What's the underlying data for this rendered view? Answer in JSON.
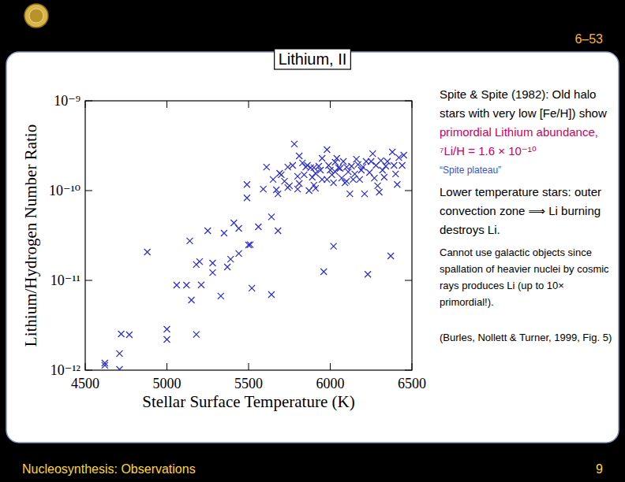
{
  "chart_data": {
    "type": "scatter",
    "title": "Lithium, II",
    "x_label": "Stellar Surface Temperature (K)",
    "y_label": "Lithium/Hydrogen Number Ratio",
    "color": "#2b2bcc",
    "marker": "x",
    "log": "y",
    "xlim": [
      4500,
      6500
    ],
    "ylim": [
      1e-12,
      1e-09
    ],
    "xticks": [
      4500,
      5000,
      5500,
      6000,
      6500
    ],
    "yticks": [
      {
        "value": 1e-12,
        "label": "10⁻¹²"
      },
      {
        "value": 1e-11,
        "label": "10⁻¹¹"
      },
      {
        "value": 1e-10,
        "label": "10⁻¹⁰"
      },
      {
        "value": 1e-09,
        "label": "10⁻⁹"
      }
    ],
    "x": [
      4620,
      4620,
      4710,
      4710,
      4720,
      4770,
      4880,
      5000,
      5000,
      5060,
      5120,
      5140,
      5150,
      5180,
      5180,
      5200,
      5210,
      5250,
      5280,
      5280,
      5330,
      5350,
      5370,
      5390,
      5410,
      5440,
      5440,
      5490,
      5490,
      5500,
      5510,
      5520,
      5560,
      5590,
      5610,
      5640,
      5640,
      5650,
      5670,
      5680,
      5680,
      5690,
      5700,
      5720,
      5740,
      5740,
      5750,
      5770,
      5780,
      5800,
      5800,
      5810,
      5810,
      5830,
      5840,
      5850,
      5860,
      5870,
      5880,
      5890,
      5900,
      5900,
      5910,
      5910,
      5930,
      5940,
      5950,
      5950,
      5960,
      5980,
      5980,
      5990,
      6000,
      6010,
      6020,
      6030,
      6030,
      6040,
      6050,
      6060,
      6070,
      6080,
      6090,
      6100,
      6100,
      6110,
      6120,
      6130,
      6140,
      6150,
      6160,
      6170,
      6180,
      6190,
      6200,
      6210,
      6220,
      6230,
      6240,
      6250,
      6260,
      6270,
      6280,
      6290,
      6300,
      6310,
      6320,
      6330,
      6340,
      6350,
      6370,
      6380,
      6390,
      6400,
      6410,
      6420,
      6440,
      6450,
      6020
    ],
    "values": [
      1.2e-12,
      1.13e-12,
      1.02e-12,
      1.53e-12,
      2.53e-12,
      2.48e-12,
      2.07e-11,
      2.86e-12,
      2.2e-12,
      8.86e-12,
      8.86e-12,
      2.75e-11,
      6.04e-12,
      2.5e-12,
      1.5e-11,
      1.62e-11,
      8.9e-12,
      3.57e-11,
      1.56e-11,
      1.22e-11,
      6.7e-12,
      3.36e-11,
      1.41e-11,
      1.72e-11,
      4.37e-11,
      3.79e-11,
      1.99e-11,
      1.17e-10,
      8.3e-11,
      2.48e-11,
      2.5e-11,
      8.2e-12,
      3.95e-11,
      1.04e-10,
      1.83e-10,
      5.1e-11,
      6.95e-12,
      1.33e-10,
      1.02e-10,
      3.57e-11,
      9.2e-11,
      1.56e-10,
      1.5e-10,
      1.27e-10,
      1.83e-10,
      1.08e-10,
      1.13e-10,
      1.91e-10,
      3.3e-10,
      1.44e-10,
      1.04e-10,
      1.2e-10,
      2.43e-10,
      2.03e-10,
      1.5e-10,
      1.83e-10,
      1.91e-10,
      1e-10,
      1.8e-10,
      1.41e-10,
      1.15e-10,
      1.8e-10,
      1.56e-10,
      1.06e-10,
      1.87e-10,
      1.69e-10,
      1.33e-10,
      2.29e-10,
      1.25e-11,
      2.86e-10,
      1.33e-10,
      1.91e-10,
      1.69e-10,
      1.5e-10,
      1.22e-10,
      2.07e-10,
      1.62e-10,
      2.29e-10,
      1.8e-10,
      1.77e-10,
      1.38e-10,
      2.11e-10,
      1.22e-10,
      1.83e-10,
      1.27e-10,
      1.62e-10,
      9.2e-11,
      1.87e-10,
      1.33e-10,
      1.53e-10,
      2.24e-10,
      1.95e-10,
      1.33e-10,
      1.69e-10,
      1.83e-10,
      9.2e-11,
      2.11e-10,
      1.17e-11,
      1.59e-10,
      2.11e-10,
      2.58e-10,
      1.38e-10,
      1.91e-10,
      1.13e-10,
      9.6e-11,
      2.16e-10,
      1.69e-10,
      1.41e-10,
      1.87e-10,
      2.11e-10,
      1.87e-11,
      2.69e-10,
      1.91e-10,
      1.53e-10,
      1.17e-10,
      2.33e-10,
      1.91e-10,
      2.48e-10,
      2.4e-11
    ]
  },
  "slide": {
    "number": "6–53",
    "footer": "Nucleosynthesis: Observations",
    "page": "9",
    "notes": [
      {
        "runs": [
          {
            "text": "Spite & Spite (1982): Old halo stars with very low [Fe/H]) show "
          },
          {
            "text": "primordial Lithium abundance,",
            "color": "#cc0066"
          },
          {
            "text": " ⁷Li/H = 1.6 × 10⁻¹⁰",
            "color": "#cc0066"
          }
        ]
      },
      {
        "runs": [
          {
            "text": "“Spite plateau”",
            "color": "#3355cc"
          }
        ]
      },
      {
        "runs": [
          {
            "text": "Lower temperature stars: outer convection zone ⟹ Li burning destroys Li."
          }
        ]
      },
      {
        "runs": [
          {
            "text": "Cannot use galactic objects since spallation of heavier nuclei by cosmic rays produces Li (up to 10× primordial!)."
          }
        ]
      },
      {
        "runs": [
          {
            "text": "(Burles, Nollett & Turner, 1999, Fig. 5)"
          }
        ]
      }
    ]
  }
}
